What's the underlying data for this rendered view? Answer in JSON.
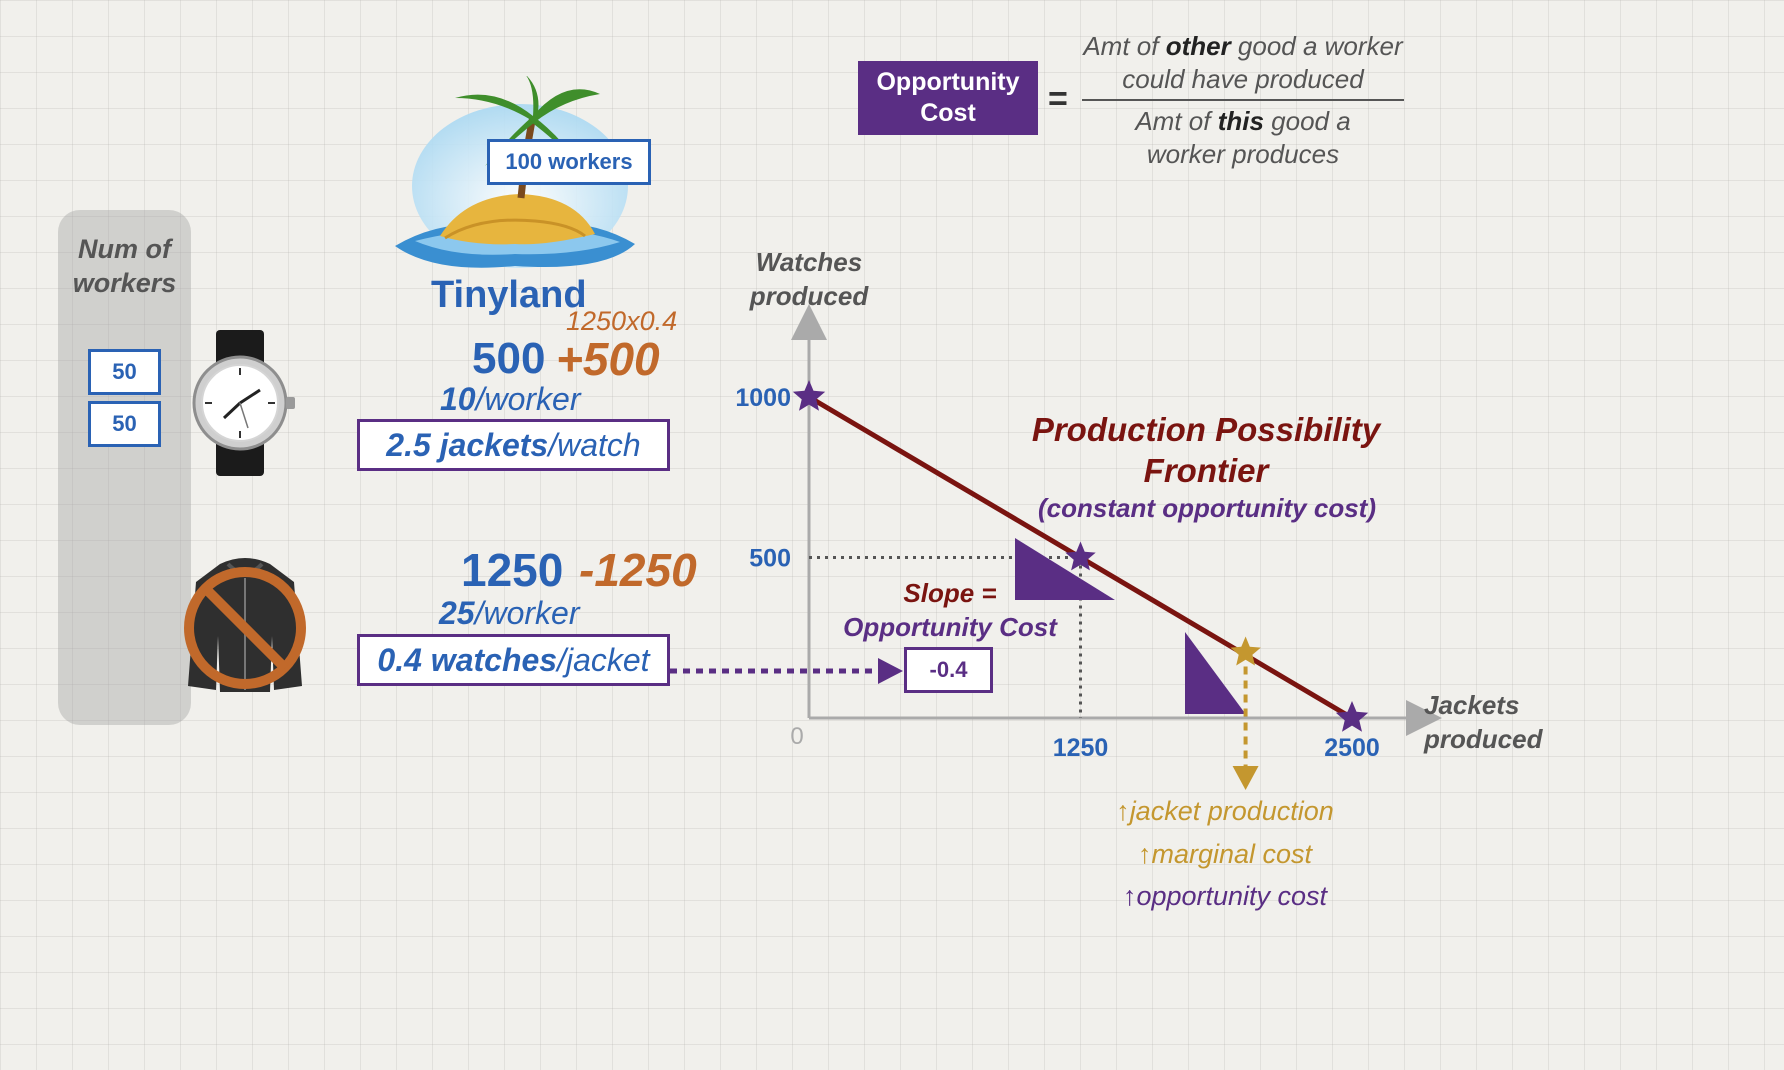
{
  "formula": {
    "label": "Opportunity Cost",
    "equals": "=",
    "numerator_pre": "Amt of ",
    "numerator_bold": "other",
    "numerator_post": " good a worker",
    "numerator_line2": "could have produced",
    "denominator_pre": "Amt of ",
    "denominator_bold": "this",
    "denominator_post": " good a",
    "denominator_line2": "worker produces"
  },
  "country": {
    "workers_label": "100 workers",
    "name": "Tinyland"
  },
  "workers_panel": {
    "title_line1": "Num of",
    "title_line2": "workers",
    "watch_workers": "50",
    "jacket_workers": "50"
  },
  "watches": {
    "calc_note": "1250x0.4",
    "amount": "500",
    "change": "+500",
    "rate_num": "10",
    "rate_unit": "/worker",
    "opp_num": "2.5 jackets",
    "opp_unit": "/watch"
  },
  "jackets": {
    "amount": "1250",
    "change": "-1250",
    "rate_num": "25",
    "rate_unit": "/worker",
    "opp_num": "0.4 watches",
    "opp_unit": "/jacket"
  },
  "chart": {
    "title_line1": "Production Possibility",
    "title_line2": "Frontier",
    "subtitle": "(constant opportunity cost)",
    "slope_label_line1": "Slope =",
    "slope_label_line2": "Opportunity Cost",
    "slope_value": "-0.4",
    "annotation_arrow": "↑",
    "annotations": [
      "jacket production",
      "marginal cost",
      "opportunity cost"
    ],
    "colors": {
      "frontier": "#7a1410",
      "points": "#5a2e84",
      "highlight": "#c4972f",
      "axis": "#aaaaaa"
    }
  },
  "chart_data": {
    "type": "line",
    "title": "Production Possibility Frontier",
    "subtitle": "(constant opportunity cost)",
    "xlabel": "Jackets produced",
    "ylabel": "Watches produced",
    "xlim": [
      0,
      2800
    ],
    "ylim": [
      0,
      1200
    ],
    "origin_label": "0",
    "x_ticks": [
      1250,
      2500
    ],
    "y_ticks": [
      500,
      1000
    ],
    "series": [
      {
        "values": [
          [
            0,
            1000
          ],
          [
            1250,
            500
          ],
          [
            2500,
            0
          ]
        ]
      }
    ],
    "highlight_point": [
      2010,
      204
    ],
    "slope": -0.4
  }
}
